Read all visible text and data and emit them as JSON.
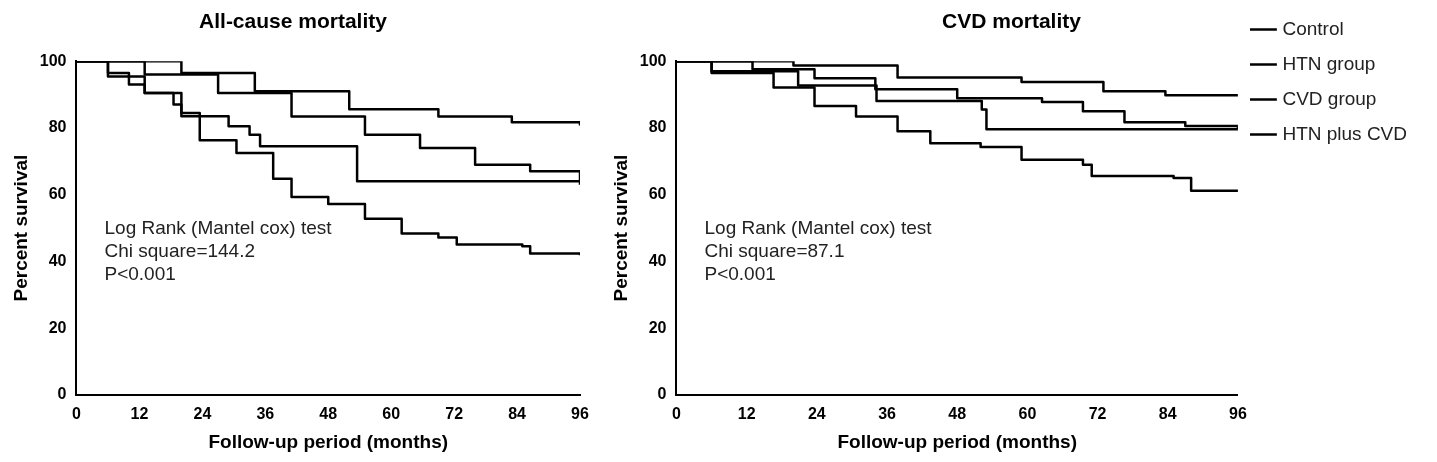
{
  "chart_data": [
    {
      "type": "step",
      "title": "All-cause mortality",
      "xlabel": "Follow-up period (months)",
      "ylabel": "Percent survival",
      "xlim": [
        0,
        96
      ],
      "xticks": [
        0,
        12,
        24,
        36,
        48,
        60,
        72,
        84,
        96
      ],
      "ylim": [
        0,
        100
      ],
      "yticks": [
        0,
        20,
        40,
        60,
        80,
        100
      ],
      "grid": false,
      "legend": false,
      "annotations": [
        "Log Rank (Mantel cox) test",
        "Chi square=144.2",
        "P<0.001"
      ],
      "series": [
        {
          "color": "#000000",
          "x": [
            0,
            20,
            34,
            52,
            69,
            83,
            96
          ],
          "values": [
            100,
            96.5,
            91,
            85.6,
            83.4,
            81.7,
            80.7
          ]
        },
        {
          "color": "#000000",
          "x": [
            0,
            13,
            27,
            41,
            55,
            65.5,
            76,
            86.5,
            96
          ],
          "values": [
            100,
            96,
            90.5,
            83.4,
            78,
            74,
            69,
            67,
            63
          ]
        },
        {
          "color": "#000000",
          "x": [
            0,
            6,
            10,
            13,
            18.5,
            20,
            29,
            33,
            35,
            53.5,
            96
          ],
          "values": [
            100,
            96.5,
            93,
            90.5,
            87,
            83.5,
            80.5,
            78,
            74.5,
            64,
            64
          ]
        },
        {
          "color": "#000000",
          "x": [
            0,
            6,
            13,
            20,
            23.5,
            30.5,
            37.5,
            41,
            48,
            55,
            62,
            69,
            72.5,
            85,
            86.5,
            96
          ],
          "values": [
            100,
            95.4,
            90.5,
            84.5,
            76.3,
            72.5,
            64.8,
            59.3,
            57.2,
            52.8,
            48.4,
            47.2,
            45.1,
            44.6,
            42.4,
            41.9
          ]
        }
      ]
    },
    {
      "type": "step",
      "title": "CVD mortality",
      "xlabel": "Follow-up period (months)",
      "ylabel": "Percent survival",
      "xlim": [
        0,
        96
      ],
      "xticks": [
        0,
        12,
        24,
        36,
        48,
        60,
        72,
        84,
        96
      ],
      "ylim": [
        0,
        100
      ],
      "yticks": [
        0,
        20,
        40,
        60,
        80,
        100
      ],
      "grid": false,
      "legend": "right",
      "annotations": [
        "Log Rank (Mantel cox) test",
        "Chi square=87.1",
        "P<0.001"
      ],
      "series": [
        {
          "name": "Control",
          "color": "#000000",
          "x": [
            0,
            20,
            37.8,
            59,
            73,
            83.6,
            96
          ],
          "values": [
            100,
            98.7,
            95.1,
            93.8,
            91,
            89.8,
            89.8
          ]
        },
        {
          "name": "HTN group",
          "color": "#000000",
          "x": [
            0,
            13,
            23.6,
            34,
            48,
            62.5,
            69.5,
            76.6,
            87,
            96
          ],
          "values": [
            100,
            97.6,
            94.9,
            91.6,
            88.9,
            87.8,
            85,
            81.7,
            80.6,
            79.6
          ]
        },
        {
          "name": "CVD group",
          "color": "#000000",
          "x": [
            0,
            6,
            20.8,
            34.2,
            52.2,
            53,
            96
          ],
          "values": [
            100,
            97,
            92.7,
            88.1,
            85.5,
            79.6,
            79.6
          ]
        },
        {
          "name": "HTN plus CVD",
          "color": "#000000",
          "x": [
            0,
            6,
            16.6,
            23.6,
            30.7,
            37.8,
            43.4,
            52,
            59,
            69.5,
            71,
            85,
            88,
            96
          ],
          "values": [
            100,
            96.5,
            92.1,
            86.6,
            83.4,
            79,
            75.4,
            74.3,
            70.5,
            69,
            65.6,
            65,
            61.2,
            61
          ]
        }
      ]
    }
  ]
}
